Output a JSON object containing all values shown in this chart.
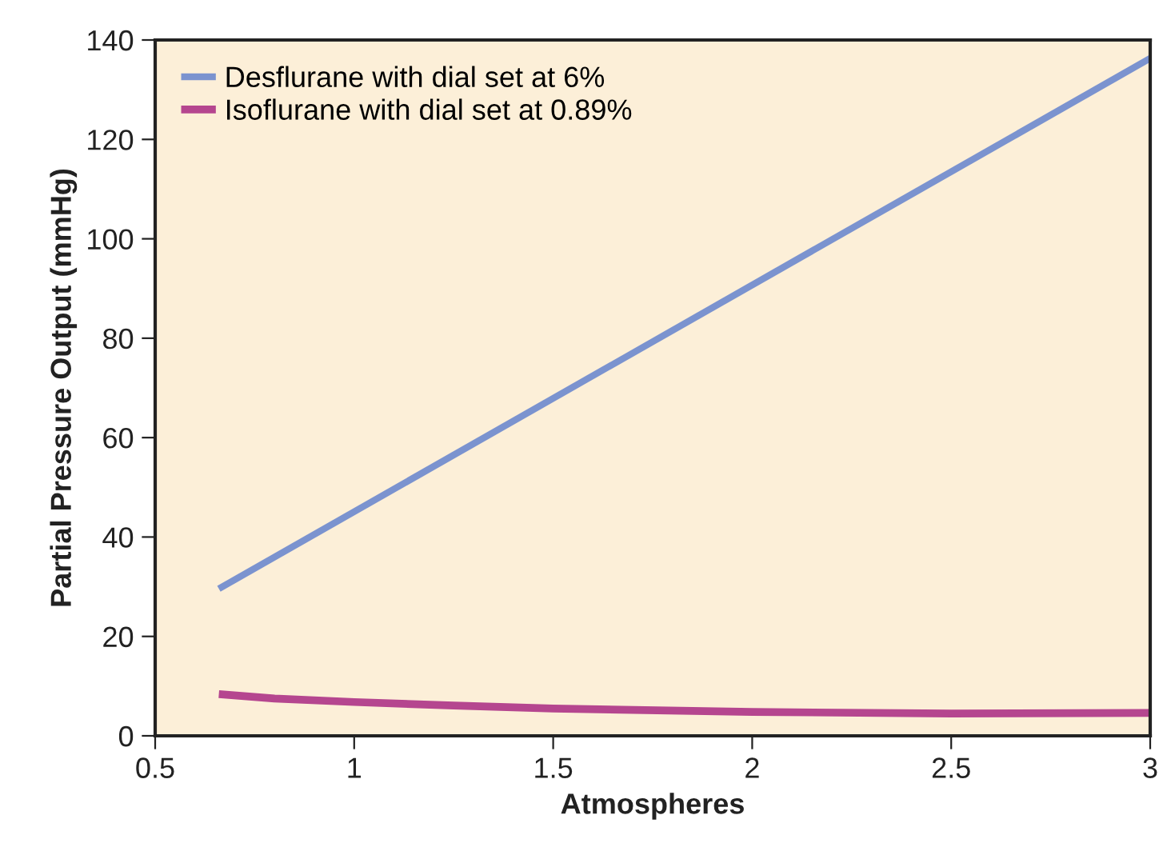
{
  "chart_data": {
    "type": "line",
    "xlabel": "Atmospheres",
    "ylabel": "Partial Pressure Output (mmHg)",
    "series": [
      {
        "name": "Desflurane with dial set at 6%",
        "color": "#7b93cf",
        "x": [
          0.66,
          3
        ],
        "values": [
          29.6,
          136.3
        ]
      },
      {
        "name": "Isoflurane with dial set at 0.89%",
        "color": "#b5468f",
        "x": [
          0.66,
          0.8,
          1,
          1.25,
          1.5,
          2,
          2.5,
          3
        ],
        "values": [
          8.4,
          7.5,
          6.8,
          6.1,
          5.5,
          4.8,
          4.5,
          4.6
        ]
      }
    ],
    "xlim": [
      0.5,
      3
    ],
    "xticks": [
      0.5,
      1,
      1.5,
      2,
      2.5,
      3
    ],
    "ylim": [
      0,
      140
    ],
    "yticks": [
      0,
      20,
      40,
      60,
      80,
      100,
      120,
      140
    ],
    "grid": false,
    "legend": "top left",
    "marker": "none",
    "line_style": "solid"
  }
}
